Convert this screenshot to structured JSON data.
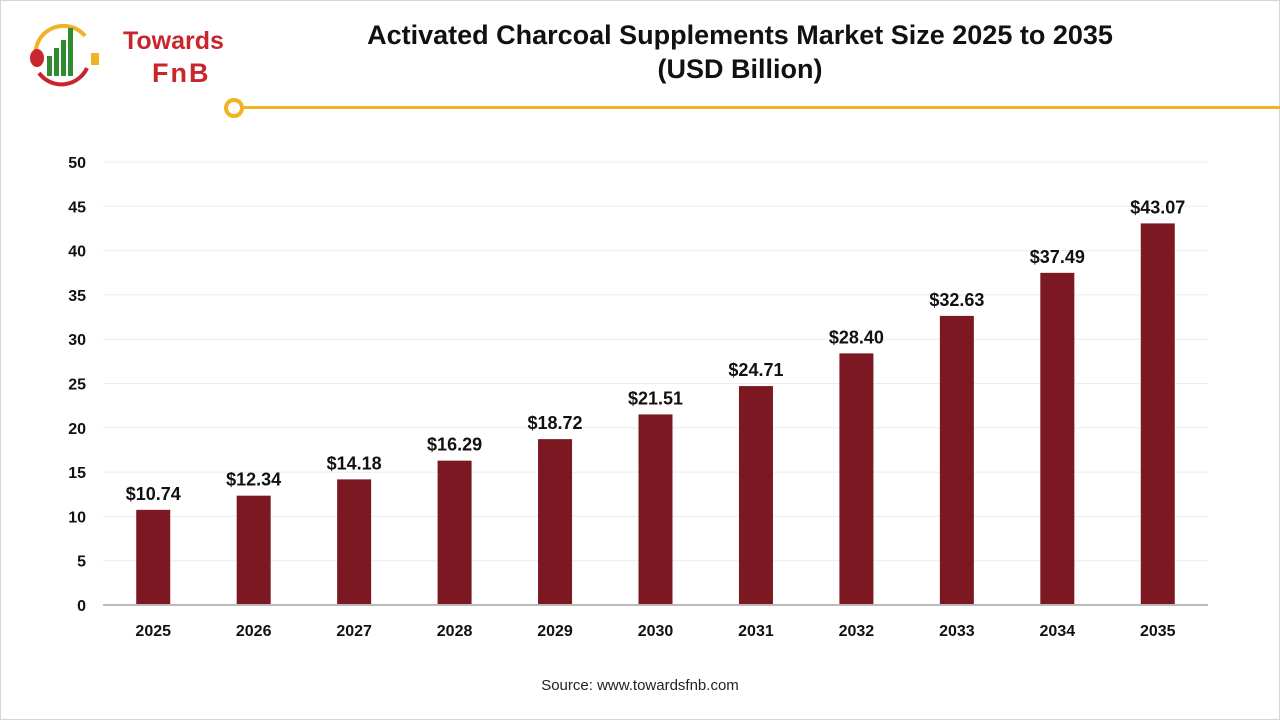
{
  "logo": {
    "line1": "Towards",
    "line2": "FnB"
  },
  "colors": {
    "bar": "#7b1822",
    "accent": "#f0b323",
    "logo_red": "#c8262c",
    "logo_green": "#2e8b2e"
  },
  "source": "Source: www.towardsfnb.com",
  "chart_data": {
    "type": "bar",
    "title": "Activated Charcoal Supplements Market Size 2025 to 2035",
    "subtitle": "(USD Billion)",
    "categories": [
      "2025",
      "2026",
      "2027",
      "2028",
      "2029",
      "2030",
      "2031",
      "2032",
      "2033",
      "2034",
      "2035"
    ],
    "values": [
      10.74,
      12.34,
      14.18,
      16.29,
      18.72,
      21.51,
      24.71,
      28.4,
      32.63,
      37.49,
      43.07
    ],
    "data_labels": [
      "$10.74",
      "$12.34",
      "$14.18",
      "$16.29",
      "$18.72",
      "$21.51",
      "$24.71",
      "$28.40",
      "$32.63",
      "$37.49",
      "$43.07"
    ],
    "yticks": [
      0,
      5,
      10,
      15,
      20,
      25,
      30,
      35,
      40,
      45,
      50
    ],
    "ylim": [
      0,
      50
    ],
    "grid": true,
    "xlabel": "",
    "ylabel": ""
  }
}
